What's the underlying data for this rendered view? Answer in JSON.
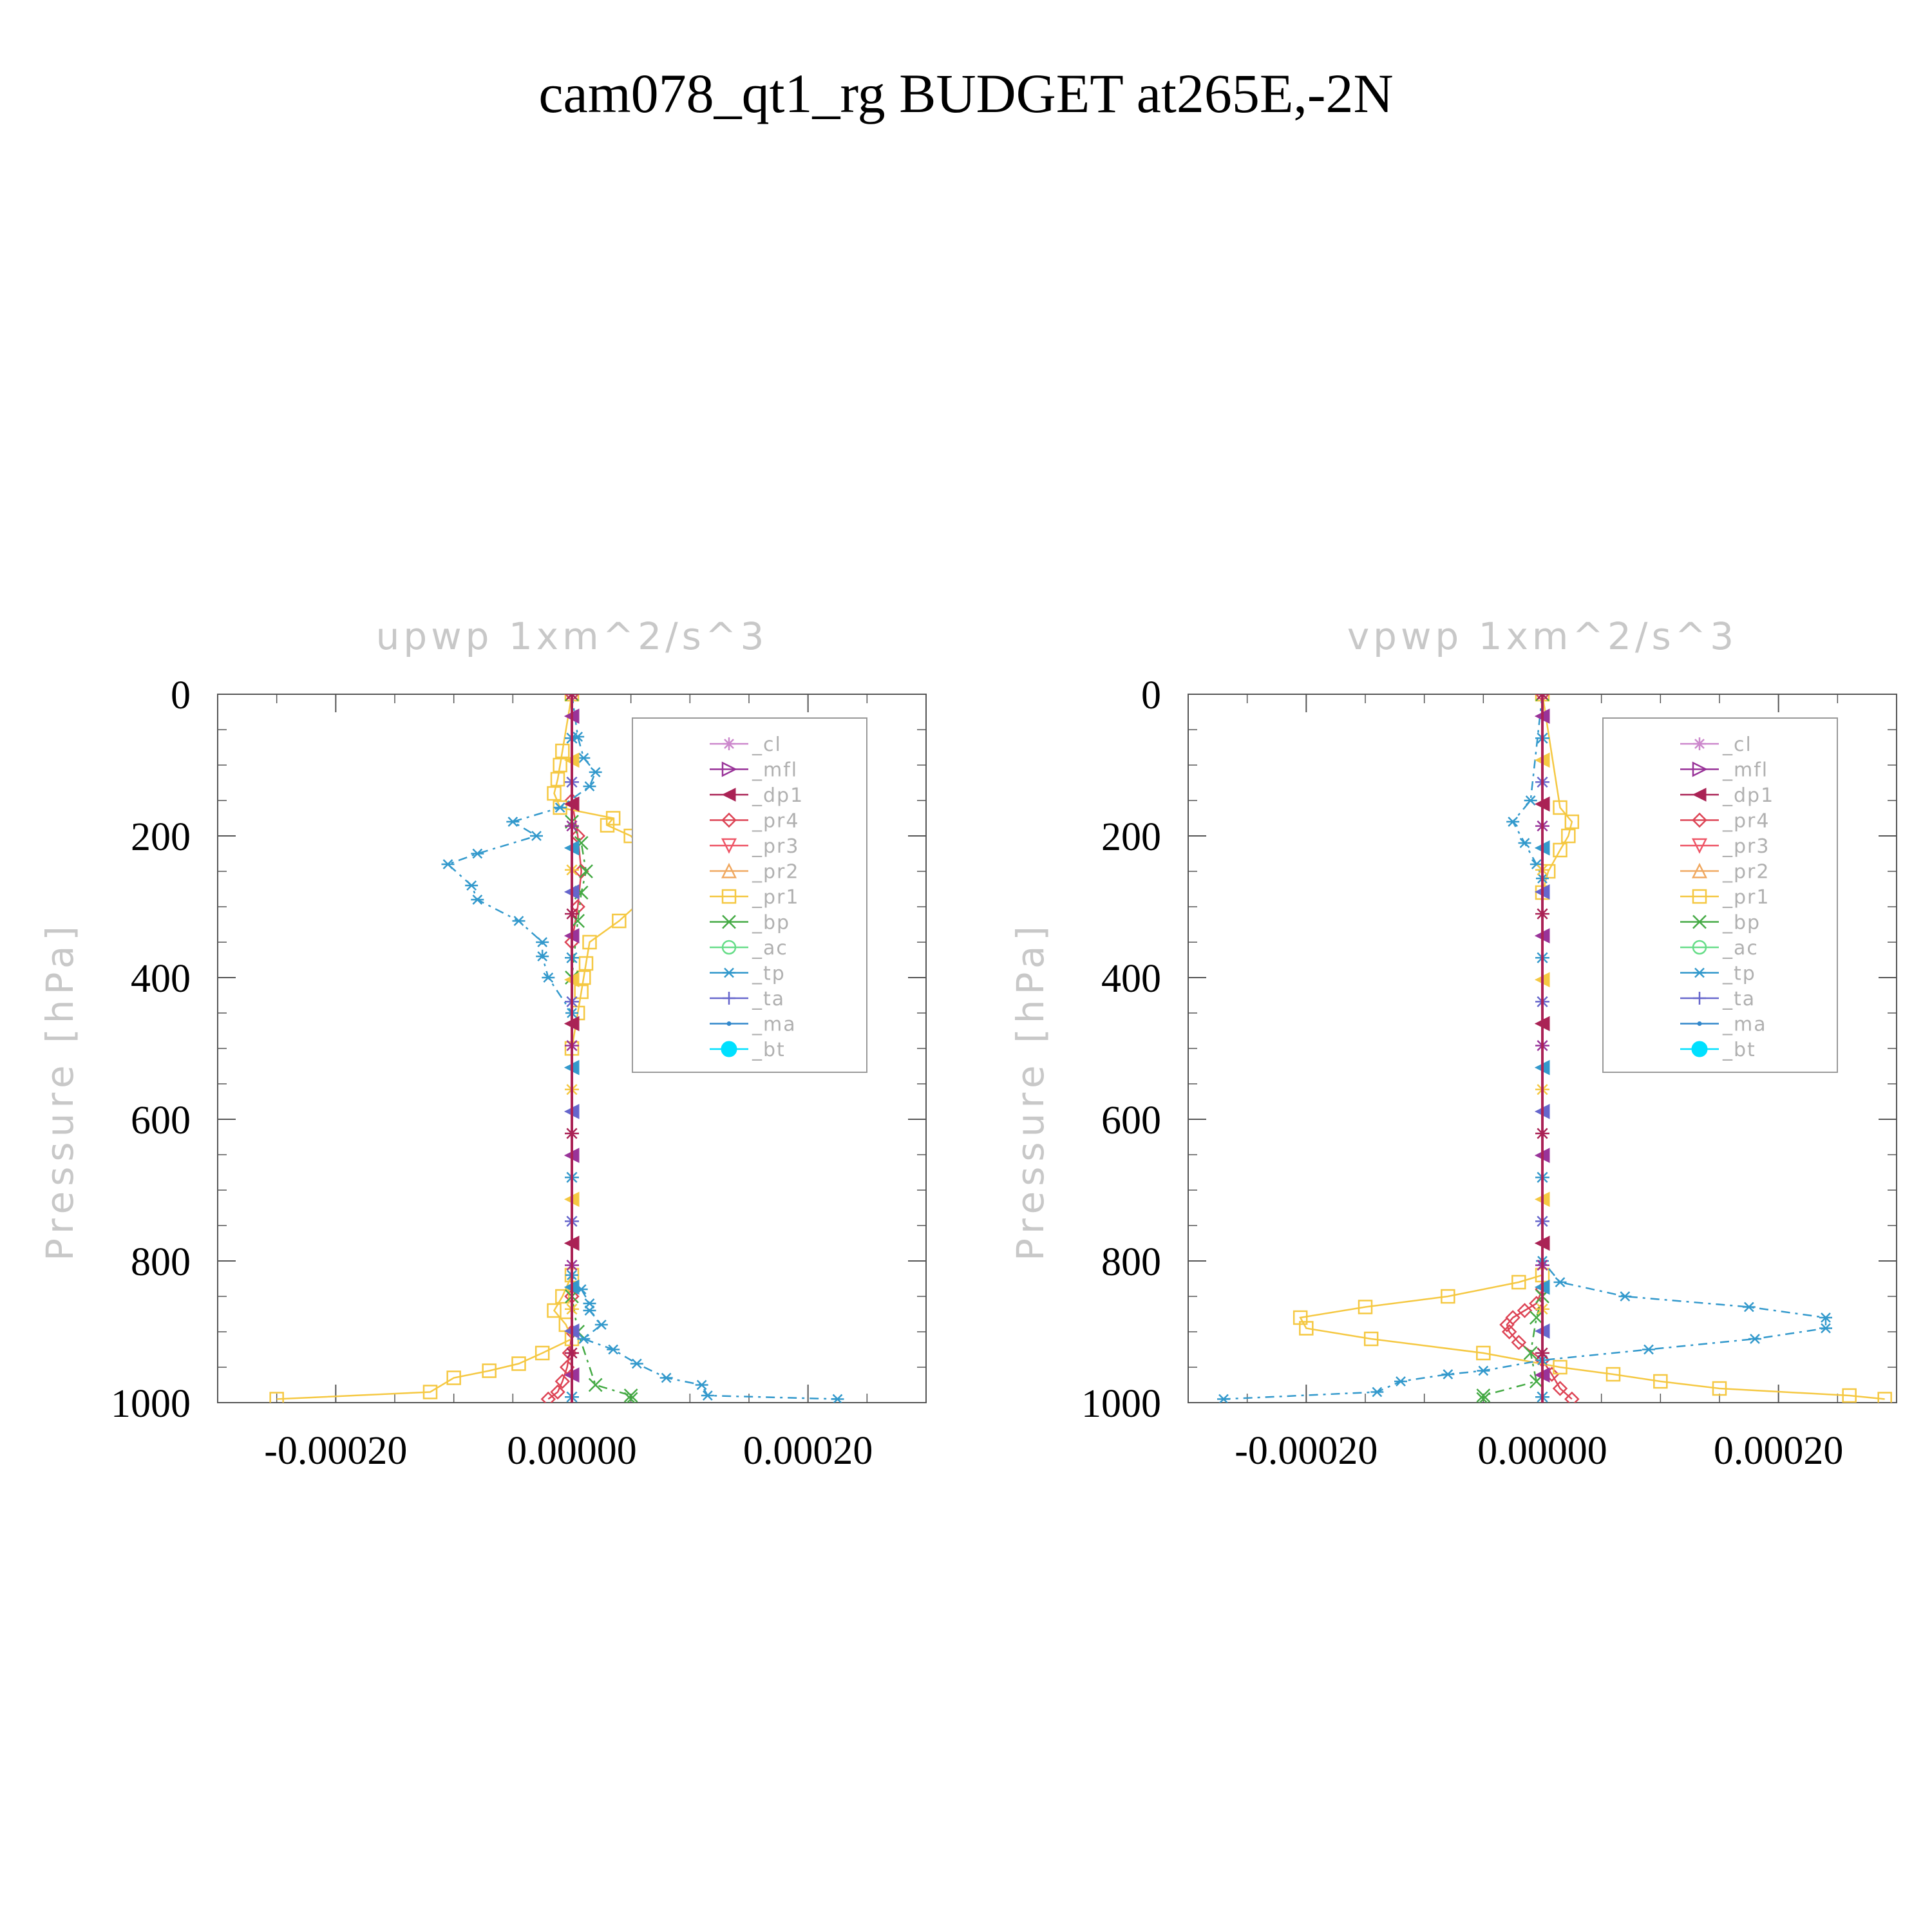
{
  "figure_title": "cam078_qt1_rg  BUDGET at265E,-2N",
  "chart_data": [
    {
      "type": "line",
      "title": "upwp    1xm^2/s^3",
      "ylabel": "Pressure  [hPa]",
      "xlabel": "",
      "xlim": [
        -0.0003,
        0.0003
      ],
      "ylim": [
        1000,
        0
      ],
      "xticks": [
        "-0.00020",
        "0.00000",
        "0.00020"
      ],
      "xtick_values": [
        -0.0002,
        0.0,
        0.0002
      ],
      "yticks": [
        "0",
        "200",
        "400",
        "600",
        "800",
        "1000"
      ],
      "ytick_values": [
        0,
        200,
        400,
        600,
        800,
        1000
      ],
      "grid": false,
      "legend_position": "top-right",
      "series": [
        {
          "name": "_cl",
          "color": "#cc88cc",
          "marker": "star",
          "x": [
            0,
            0
          ],
          "y": [
            0,
            1000
          ]
        },
        {
          "name": "_mfl",
          "color": "#993399",
          "marker": "triangle-right",
          "x": [
            0,
            0
          ],
          "y": [
            0,
            1000
          ]
        },
        {
          "name": "_dp1",
          "color": "#aa2255",
          "marker": "triangle-left",
          "x": [
            0,
            0
          ],
          "y": [
            0,
            1000
          ]
        },
        {
          "name": "_pr4",
          "color": "#dd4455",
          "marker": "diamond",
          "x": [
            0,
            0,
            5e-06,
            8e-06,
            5e-06,
            0,
            0,
            0,
            -2e-06,
            -4e-06,
            -8e-06,
            -1.2e-05,
            -2e-05
          ],
          "y": [
            0,
            150,
            200,
            250,
            300,
            350,
            850,
            900,
            930,
            950,
            970,
            985,
            995
          ]
        },
        {
          "name": "_pr3",
          "color": "#ee5566",
          "marker": "triangle-down",
          "x": [
            0,
            0
          ],
          "y": [
            0,
            1000
          ]
        },
        {
          "name": "_pr2",
          "color": "#f0a860",
          "marker": "triangle-up",
          "x": [
            0,
            0
          ],
          "y": [
            0,
            1000
          ]
        },
        {
          "name": "_pr1",
          "color": "#f5c842",
          "marker": "square",
          "x": [
            0,
            -8e-06,
            -1e-05,
            -1.2e-05,
            -1.5e-05,
            -1e-05,
            3.5e-05,
            3e-05,
            5e-05,
            6e-05,
            8.5e-05,
            8e-05,
            6e-05,
            4e-05,
            1.5e-05,
            1.2e-05,
            1e-05,
            8e-06,
            5e-06,
            0,
            0,
            -8e-06,
            -1.5e-05,
            -5e-06,
            0,
            -2.5e-05,
            -4.5e-05,
            -7e-05,
            -0.0001,
            -0.00012,
            -0.00025
          ],
          "y": [
            0,
            80,
            100,
            120,
            140,
            160,
            175,
            185,
            200,
            220,
            245,
            260,
            290,
            320,
            350,
            380,
            400,
            420,
            450,
            500,
            820,
            850,
            870,
            890,
            910,
            930,
            945,
            955,
            965,
            985,
            995
          ]
        },
        {
          "name": "_bp",
          "color": "#44aa44",
          "marker": "x",
          "x": [
            0,
            0,
            8e-06,
            1.2e-05,
            8e-06,
            5e-06,
            0,
            0,
            5e-06,
            2e-05,
            5e-05,
            5e-05
          ],
          "y": [
            0,
            180,
            210,
            250,
            280,
            320,
            400,
            850,
            900,
            975,
            990,
            995
          ]
        },
        {
          "name": "_ac",
          "color": "#66dd88",
          "marker": "circle",
          "x": [
            0,
            0
          ],
          "y": [
            0,
            1000
          ]
        },
        {
          "name": "_tp",
          "color": "#3399cc",
          "marker": "asterisk",
          "x": [
            0,
            5e-06,
            1e-05,
            2e-05,
            1.5e-05,
            -1e-05,
            -5e-05,
            -3e-05,
            -8e-05,
            -0.000105,
            -8.5e-05,
            -8e-05,
            -4.5e-05,
            -2.5e-05,
            -2.5e-05,
            -2e-05,
            0,
            0,
            8e-06,
            1.5e-05,
            1.5e-05,
            2.5e-05,
            1e-05,
            3.5e-05,
            5.5e-05,
            8e-05,
            0.00011,
            0.000115,
            0.000225
          ],
          "y": [
            0,
            60,
            90,
            110,
            130,
            160,
            180,
            200,
            225,
            240,
            270,
            290,
            320,
            350,
            370,
            400,
            450,
            820,
            840,
            860,
            870,
            890,
            910,
            925,
            945,
            965,
            975,
            990,
            995
          ]
        },
        {
          "name": "_ta",
          "color": "#6666cc",
          "marker": "plus",
          "x": [
            0,
            0
          ],
          "y": [
            0,
            1000
          ]
        },
        {
          "name": "_ma",
          "color": "#3388cc",
          "marker": "dot",
          "x": [
            0,
            0
          ],
          "y": [
            0,
            1000
          ]
        },
        {
          "name": "_bt",
          "color": "#00e0ff",
          "marker": "filled-circle",
          "x": [
            0,
            0
          ],
          "y": [
            0,
            1000
          ]
        }
      ]
    },
    {
      "type": "line",
      "title": "vpwp    1xm^2/s^3",
      "ylabel": "Pressure  [hPa]",
      "xlabel": "",
      "xlim": [
        -0.0003,
        0.0003
      ],
      "ylim": [
        1000,
        0
      ],
      "xticks": [
        "-0.00020",
        "0.00000",
        "0.00020"
      ],
      "xtick_values": [
        -0.0002,
        0.0,
        0.0002
      ],
      "yticks": [
        "0",
        "200",
        "400",
        "600",
        "800",
        "1000"
      ],
      "ytick_values": [
        0,
        200,
        400,
        600,
        800,
        1000
      ],
      "grid": false,
      "legend_position": "top-right",
      "series": [
        {
          "name": "_cl",
          "color": "#cc88cc",
          "marker": "star",
          "x": [
            0,
            0
          ],
          "y": [
            0,
            1000
          ]
        },
        {
          "name": "_mfl",
          "color": "#993399",
          "marker": "triangle-right",
          "x": [
            0,
            0
          ],
          "y": [
            0,
            1000
          ]
        },
        {
          "name": "_dp1",
          "color": "#aa2255",
          "marker": "triangle-left",
          "x": [
            0,
            0
          ],
          "y": [
            0,
            1000
          ]
        },
        {
          "name": "_pr4",
          "color": "#dd4455",
          "marker": "diamond",
          "x": [
            0,
            0,
            -5e-06,
            -1.5e-05,
            -2.5e-05,
            -3e-05,
            -2.8e-05,
            -2e-05,
            0,
            8e-06,
            1.5e-05,
            2.5e-05
          ],
          "y": [
            0,
            840,
            860,
            870,
            880,
            890,
            900,
            915,
            940,
            960,
            980,
            995
          ]
        },
        {
          "name": "_pr3",
          "color": "#ee5566",
          "marker": "triangle-down",
          "x": [
            0,
            0
          ],
          "y": [
            0,
            1000
          ]
        },
        {
          "name": "_pr2",
          "color": "#f0a860",
          "marker": "triangle-up",
          "x": [
            0,
            0
          ],
          "y": [
            0,
            1000
          ]
        },
        {
          "name": "_pr1",
          "color": "#f5c842",
          "marker": "square",
          "x": [
            0,
            1.5e-05,
            2.5e-05,
            2.2e-05,
            1.5e-05,
            5e-06,
            0,
            0,
            -2e-05,
            -8e-05,
            -0.00015,
            -0.000205,
            -0.0002,
            -0.000145,
            -5e-05,
            1.5e-05,
            6e-05,
            0.0001,
            0.00015,
            0.00026,
            0.00029
          ],
          "y": [
            0,
            160,
            180,
            200,
            220,
            250,
            280,
            820,
            830,
            850,
            865,
            880,
            895,
            910,
            930,
            950,
            960,
            970,
            980,
            990,
            995
          ]
        },
        {
          "name": "_bp",
          "color": "#44aa44",
          "marker": "x",
          "x": [
            0,
            0,
            -5e-06,
            -1e-05,
            -5e-06,
            -5e-05,
            -5e-05
          ],
          "y": [
            0,
            850,
            880,
            930,
            970,
            990,
            995
          ]
        },
        {
          "name": "_ac",
          "color": "#66dd88",
          "marker": "circle",
          "x": [
            0,
            0
          ],
          "y": [
            0,
            1000
          ]
        },
        {
          "name": "_tp",
          "color": "#3399cc",
          "marker": "asterisk",
          "x": [
            0,
            -1e-05,
            -2.5e-05,
            -1.5e-05,
            -5e-06,
            0,
            0,
            1.5e-05,
            7e-05,
            0.000175,
            0.00024,
            0.00024,
            0.00018,
            9e-05,
            0,
            -5e-05,
            -8e-05,
            -0.00012,
            -0.00014,
            -0.00027
          ],
          "y": [
            0,
            150,
            180,
            210,
            240,
            260,
            800,
            830,
            850,
            865,
            880,
            895,
            910,
            925,
            940,
            955,
            960,
            970,
            985,
            995
          ]
        },
        {
          "name": "_ta",
          "color": "#6666cc",
          "marker": "plus",
          "x": [
            0,
            0
          ],
          "y": [
            0,
            1000
          ]
        },
        {
          "name": "_ma",
          "color": "#3388cc",
          "marker": "dot",
          "x": [
            0,
            0
          ],
          "y": [
            0,
            1000
          ]
        },
        {
          "name": "_bt",
          "color": "#00e0ff",
          "marker": "filled-circle",
          "x": [
            0,
            0
          ],
          "y": [
            0,
            1000
          ]
        }
      ]
    }
  ]
}
